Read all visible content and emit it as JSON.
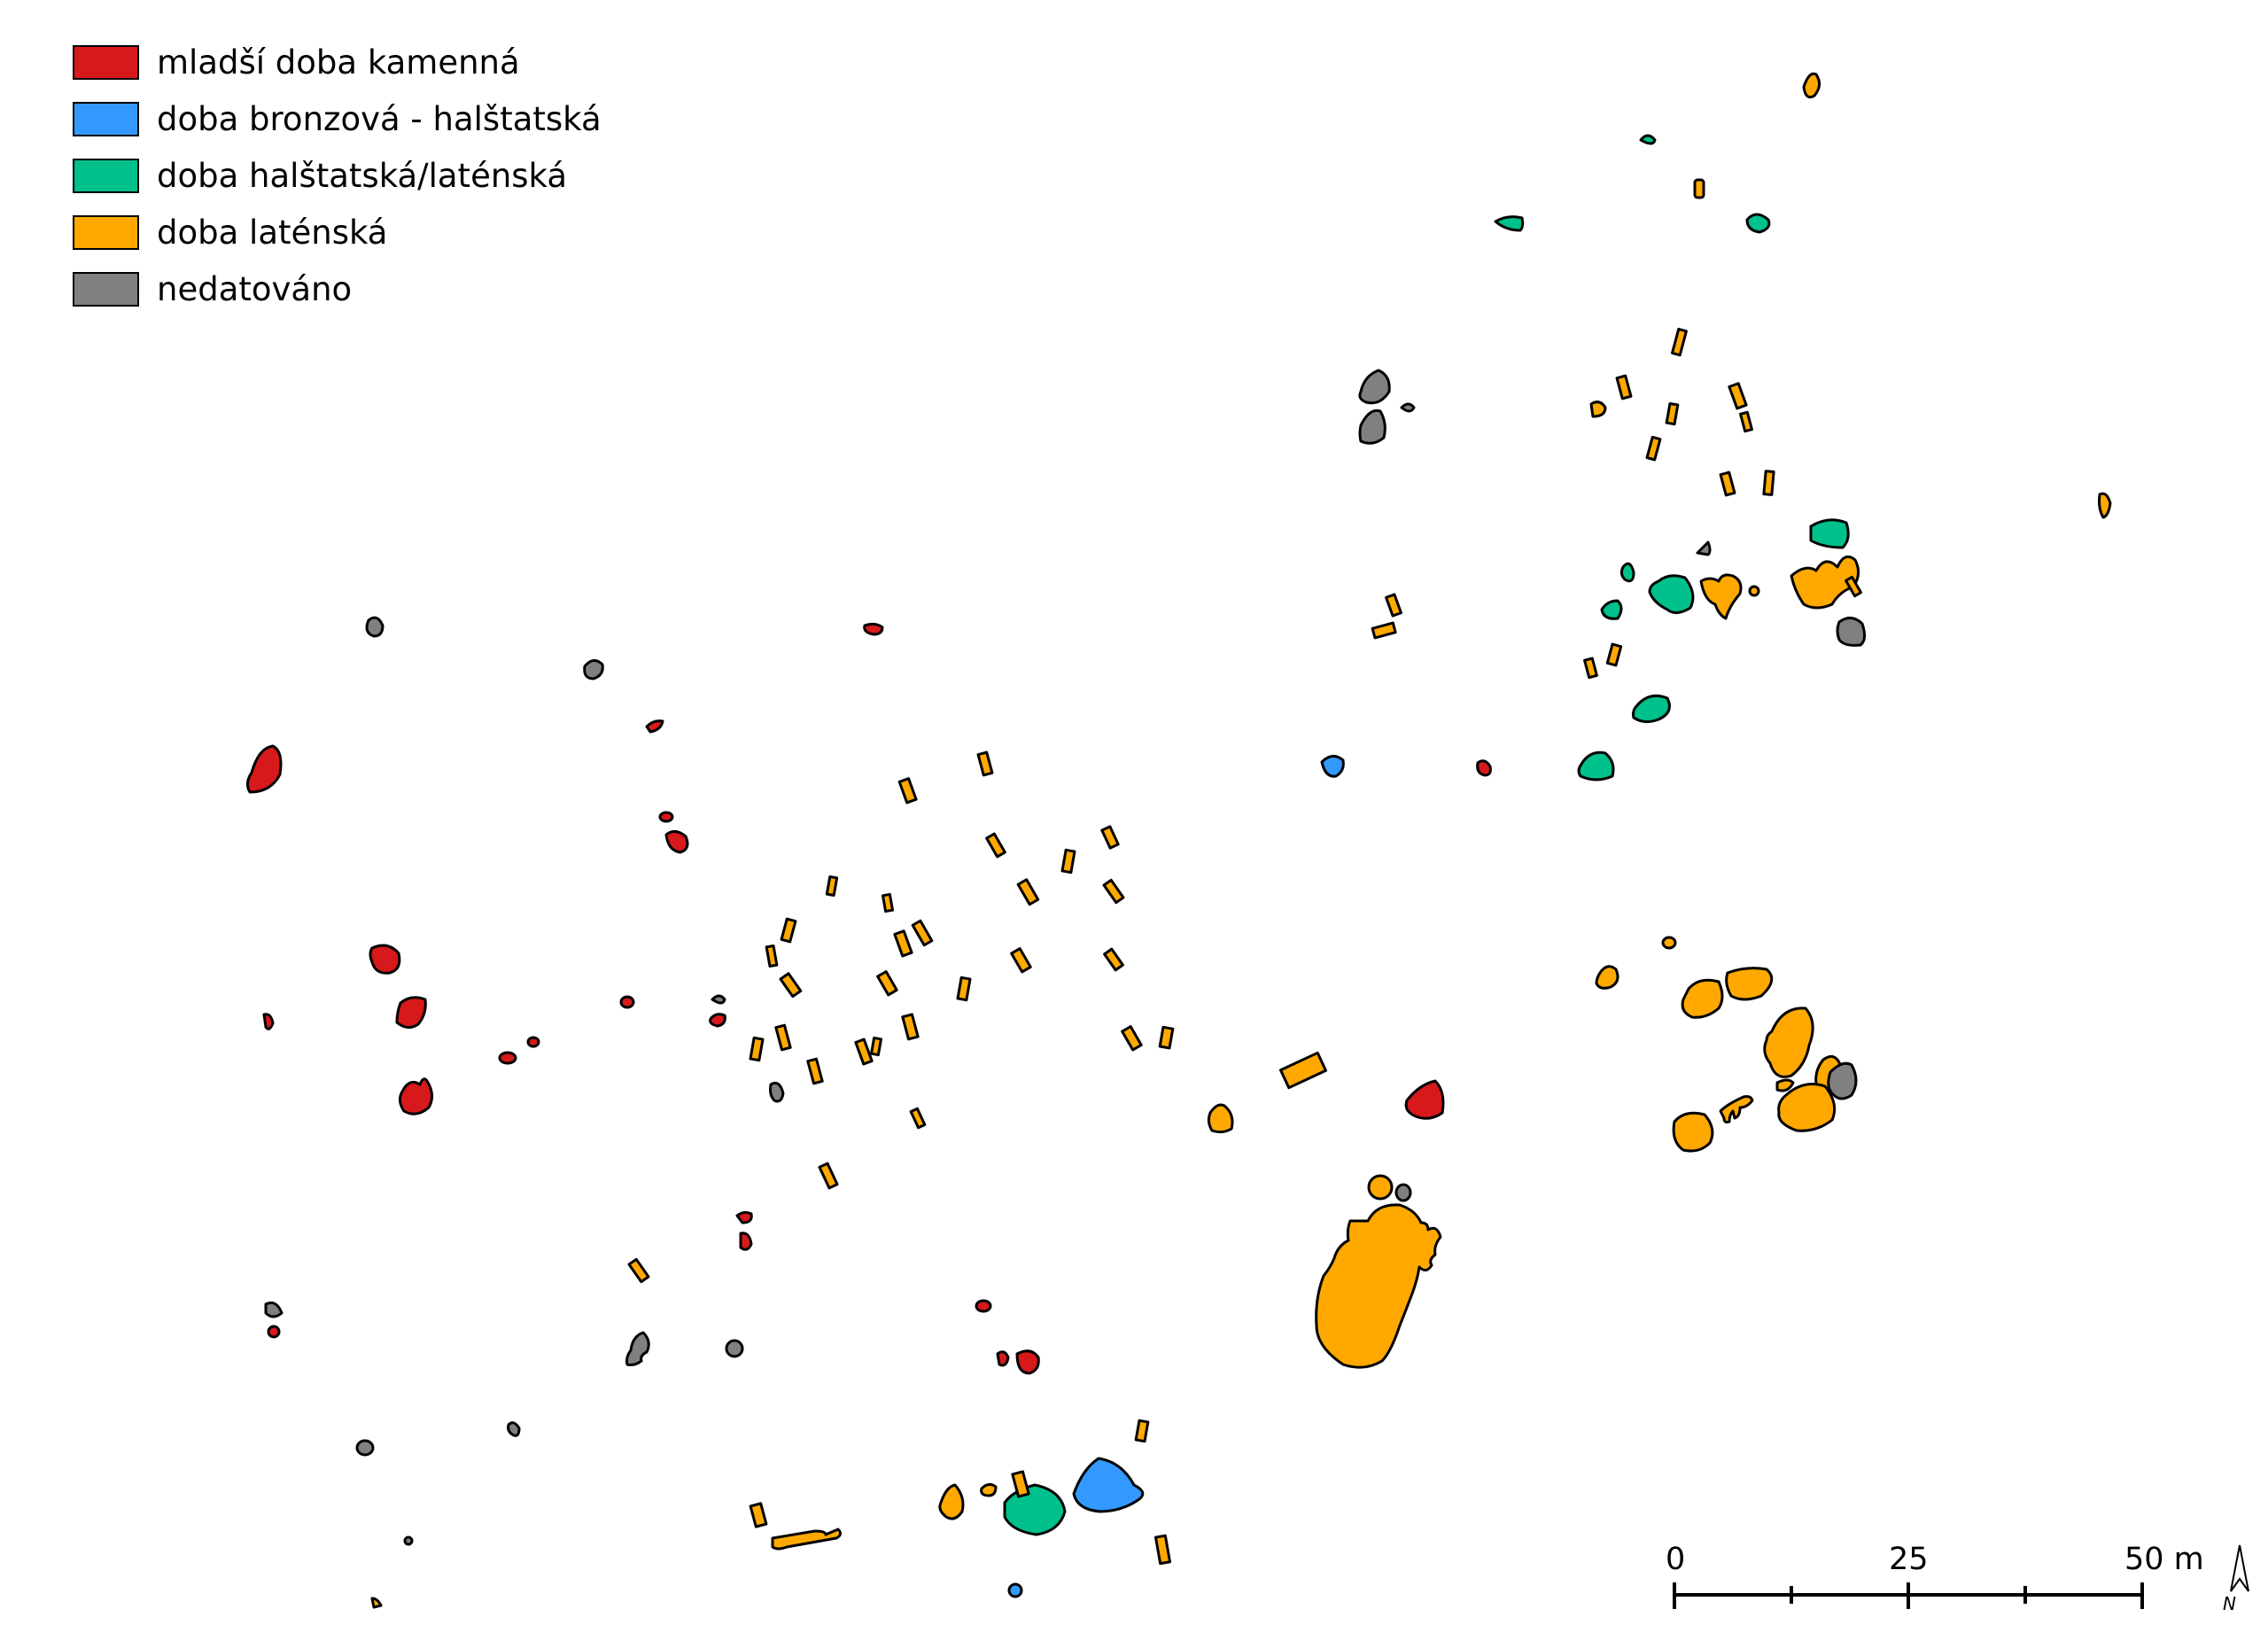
{
  "legend": {
    "items": [
      {
        "label": "mladší doba kamenná",
        "color": "#d7191c"
      },
      {
        "label": "doba bronzová - halštatská",
        "color": "#3399ff"
      },
      {
        "label": "doba halštatská/laténská",
        "color": "#00c08b"
      },
      {
        "label": "doba laténská",
        "color": "#ffa900"
      },
      {
        "label": "nedatováno",
        "color": "#808080"
      }
    ]
  },
  "scale_bar": {
    "labels": [
      "0",
      "25",
      "50 m"
    ]
  },
  "north_arrow": {
    "label": "N",
    "icon": "north-arrow-icon"
  }
}
